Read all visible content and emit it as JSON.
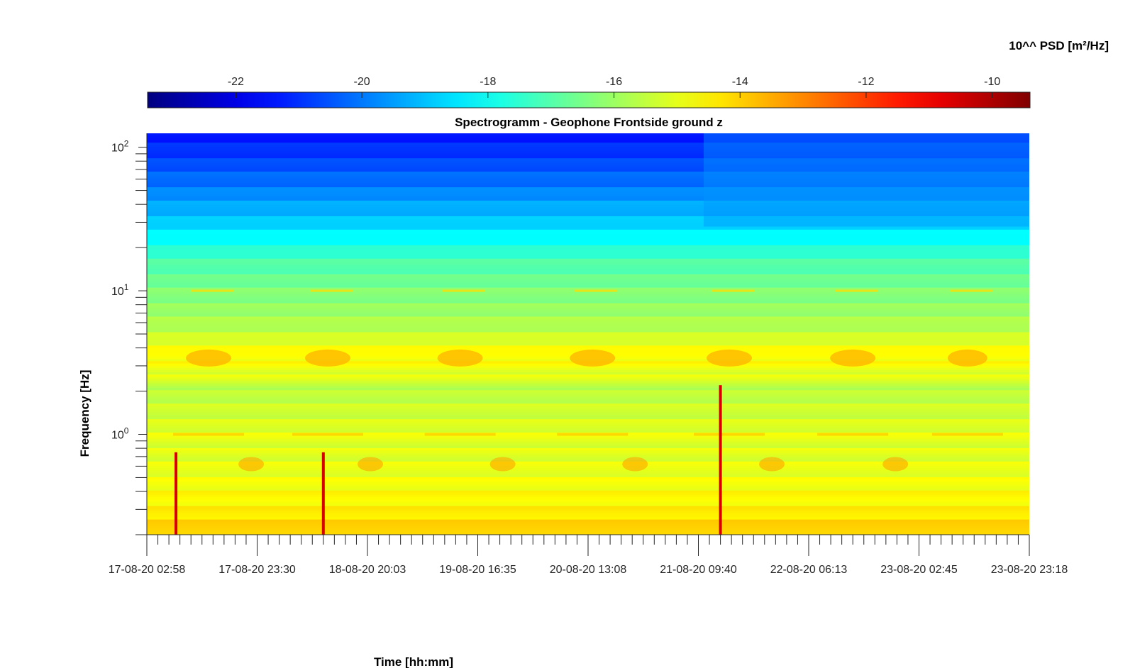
{
  "chart_data": {
    "type": "heatmap",
    "title": "Spectrogramm - Geophone Frontside ground z",
    "xlabel": "Time [hh:mm]",
    "ylabel": "Frequency [Hz]",
    "x_tick_labels": [
      "17-08-20 02:58",
      "17-08-20 23:30",
      "18-08-20 20:03",
      "19-08-20 16:35",
      "20-08-20 13:08",
      "21-08-20 09:40",
      "22-08-20 06:13",
      "23-08-20 02:45",
      "23-08-20 23:18"
    ],
    "y_scale": "log",
    "y_tick_labels": [
      {
        "base": "10",
        "exp": "0",
        "value": 1
      },
      {
        "base": "10",
        "exp": "1",
        "value": 10
      },
      {
        "base": "10",
        "exp": "2",
        "value": 100
      }
    ],
    "ylim": [
      0.2,
      125
    ],
    "colorbar": {
      "label": "10^^ PSD [m²/Hz]",
      "range": [
        -23.4,
        -9.4
      ],
      "tick_labels": [
        "-22",
        "-20",
        "-18",
        "-16",
        "-14",
        "-12",
        "-10"
      ],
      "tick_values": [
        -22,
        -20,
        -18,
        -16,
        -14,
        -12,
        -10
      ],
      "colormap": "jet",
      "placement": "top"
    },
    "psd_by_frequency": [
      {
        "freq": 0.2,
        "psd": -13.8
      },
      {
        "freq": 0.28,
        "psd": -14.4
      },
      {
        "freq": 0.4,
        "psd": -14.7
      },
      {
        "freq": 0.7,
        "psd": -15.1
      },
      {
        "freq": 1.0,
        "psd": -15.0
      },
      {
        "freq": 2.0,
        "psd": -15.6
      },
      {
        "freq": 3.5,
        "psd": -14.5
      },
      {
        "freq": 6.0,
        "psd": -15.8
      },
      {
        "freq": 10,
        "psd": -16.4
      },
      {
        "freq": 16,
        "psd": -17.1
      },
      {
        "freq": 30,
        "psd": -18.8
      },
      {
        "freq": 60,
        "psd": -20.2
      },
      {
        "freq": 125,
        "psd": -21.4
      }
    ]
  }
}
